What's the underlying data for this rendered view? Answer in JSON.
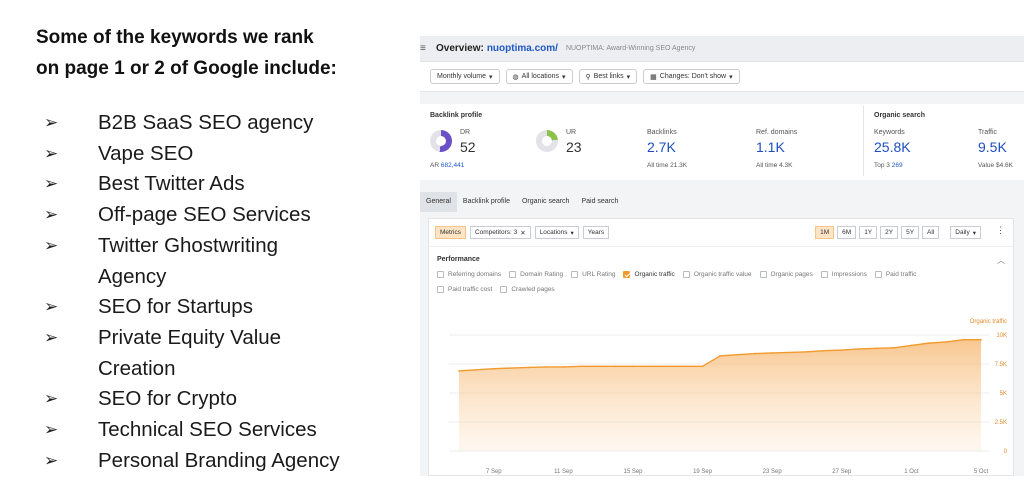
{
  "slide": {
    "heading_line1": "Some of the keywords we rank",
    "heading_line2": "on page 1 or 2 of Google include:",
    "bullet_glyph": "➢",
    "keywords": [
      [
        "B2B SaaS SEO agency"
      ],
      [
        "Vape SEO"
      ],
      [
        "Best Twitter Ads"
      ],
      [
        "Off-page SEO Services"
      ],
      [
        "Twitter Ghostwriting",
        "Agency"
      ],
      [
        "SEO for Startups"
      ],
      [
        "Private Equity Value",
        "Creation"
      ],
      [
        "SEO for Crypto"
      ],
      [
        "Technical SEO Services"
      ],
      [
        "Personal Branding Agency"
      ]
    ]
  },
  "overview": {
    "title": "Overview:",
    "domain": "nuoptima.com/",
    "subtitle": "NUOPTIMA: Award-Winning SEO Agency",
    "filters": [
      "Monthly volume",
      "All locations",
      "Best links",
      "Changes: Don't show"
    ]
  },
  "backlink_profile": {
    "title": "Backlink profile",
    "dr_label": "DR",
    "dr_value": "52",
    "ar_label": "AR",
    "ar_value": "682,441",
    "ur_label": "UR",
    "ur_value": "23",
    "backlinks_label": "Backlinks",
    "backlinks_value": "2.7K",
    "backlinks_alltime_label": "All time",
    "backlinks_alltime": "21.3K",
    "ref_domains_label": "Ref. domains",
    "ref_domains_value": "1.1K",
    "ref_alltime_label": "All time",
    "ref_alltime": "4.3K"
  },
  "organic_search": {
    "title": "Organic search",
    "keywords_label": "Keywords",
    "keywords_value": "25.8K",
    "top3_label": "Top 3",
    "top3_value": "269",
    "traffic_label": "Traffic",
    "traffic_value": "9.5K",
    "value_label": "Value",
    "value_value": "$4.6K"
  },
  "tabs": [
    "General",
    "Backlink profile",
    "Organic search",
    "Paid search"
  ],
  "controls": {
    "metrics": "Metrics",
    "competitors": "Competitors: 3",
    "locations": "Locations",
    "years": "Years",
    "ranges": [
      "1M",
      "6M",
      "1Y",
      "2Y",
      "5Y",
      "All"
    ],
    "interval": "Daily"
  },
  "performance": {
    "title": "Performance",
    "checkboxes": [
      {
        "label": "Referring domains",
        "checked": false
      },
      {
        "label": "Domain Rating",
        "checked": false
      },
      {
        "label": "URL Rating",
        "checked": false
      },
      {
        "label": "Organic traffic",
        "checked": true
      },
      {
        "label": "Organic traffic value",
        "checked": false
      },
      {
        "label": "Organic pages",
        "checked": false
      },
      {
        "label": "Impressions",
        "checked": false
      },
      {
        "label": "Paid traffic",
        "checked": false
      },
      {
        "label": "Paid traffic cost",
        "checked": false
      },
      {
        "label": "Crawled pages",
        "checked": false
      }
    ]
  },
  "colors": {
    "accent_orange": "#f39a2c",
    "link_blue": "#1f4fbf",
    "dr_purple": "#6b4fc7",
    "ur_green": "#8cc14a"
  },
  "chart_data": {
    "type": "area",
    "series": [
      {
        "name": "Organic traffic",
        "x": [
          "5 Sep",
          "6 Sep",
          "7 Sep",
          "8 Sep",
          "9 Sep",
          "10 Sep",
          "11 Sep",
          "12 Sep",
          "13 Sep",
          "14 Sep",
          "15 Sep",
          "16 Sep",
          "17 Sep",
          "18 Sep",
          "19 Sep",
          "20 Sep",
          "21 Sep",
          "22 Sep",
          "23 Sep",
          "24 Sep",
          "25 Sep",
          "26 Sep",
          "27 Sep",
          "28 Sep",
          "29 Sep",
          "30 Sep",
          "1 Oct",
          "2 Oct",
          "3 Oct",
          "4 Oct",
          "5 Oct"
        ],
        "values": [
          6900,
          7000,
          7100,
          7150,
          7200,
          7250,
          7250,
          7300,
          7300,
          7300,
          7300,
          7300,
          7300,
          7300,
          7300,
          8200,
          8300,
          8400,
          8450,
          8500,
          8550,
          8650,
          8700,
          8800,
          8850,
          8900,
          9100,
          9300,
          9400,
          9600,
          9600
        ]
      }
    ],
    "x_tick_labels": [
      "7 Sep",
      "11 Sep",
      "15 Sep",
      "19 Sep",
      "23 Sep",
      "27 Sep",
      "1 Oct",
      "5 Oct"
    ],
    "y_tick_labels": [
      "10K",
      "7.5K",
      "5K",
      "2.5K",
      "0"
    ],
    "ylim": [
      0,
      10000
    ]
  }
}
